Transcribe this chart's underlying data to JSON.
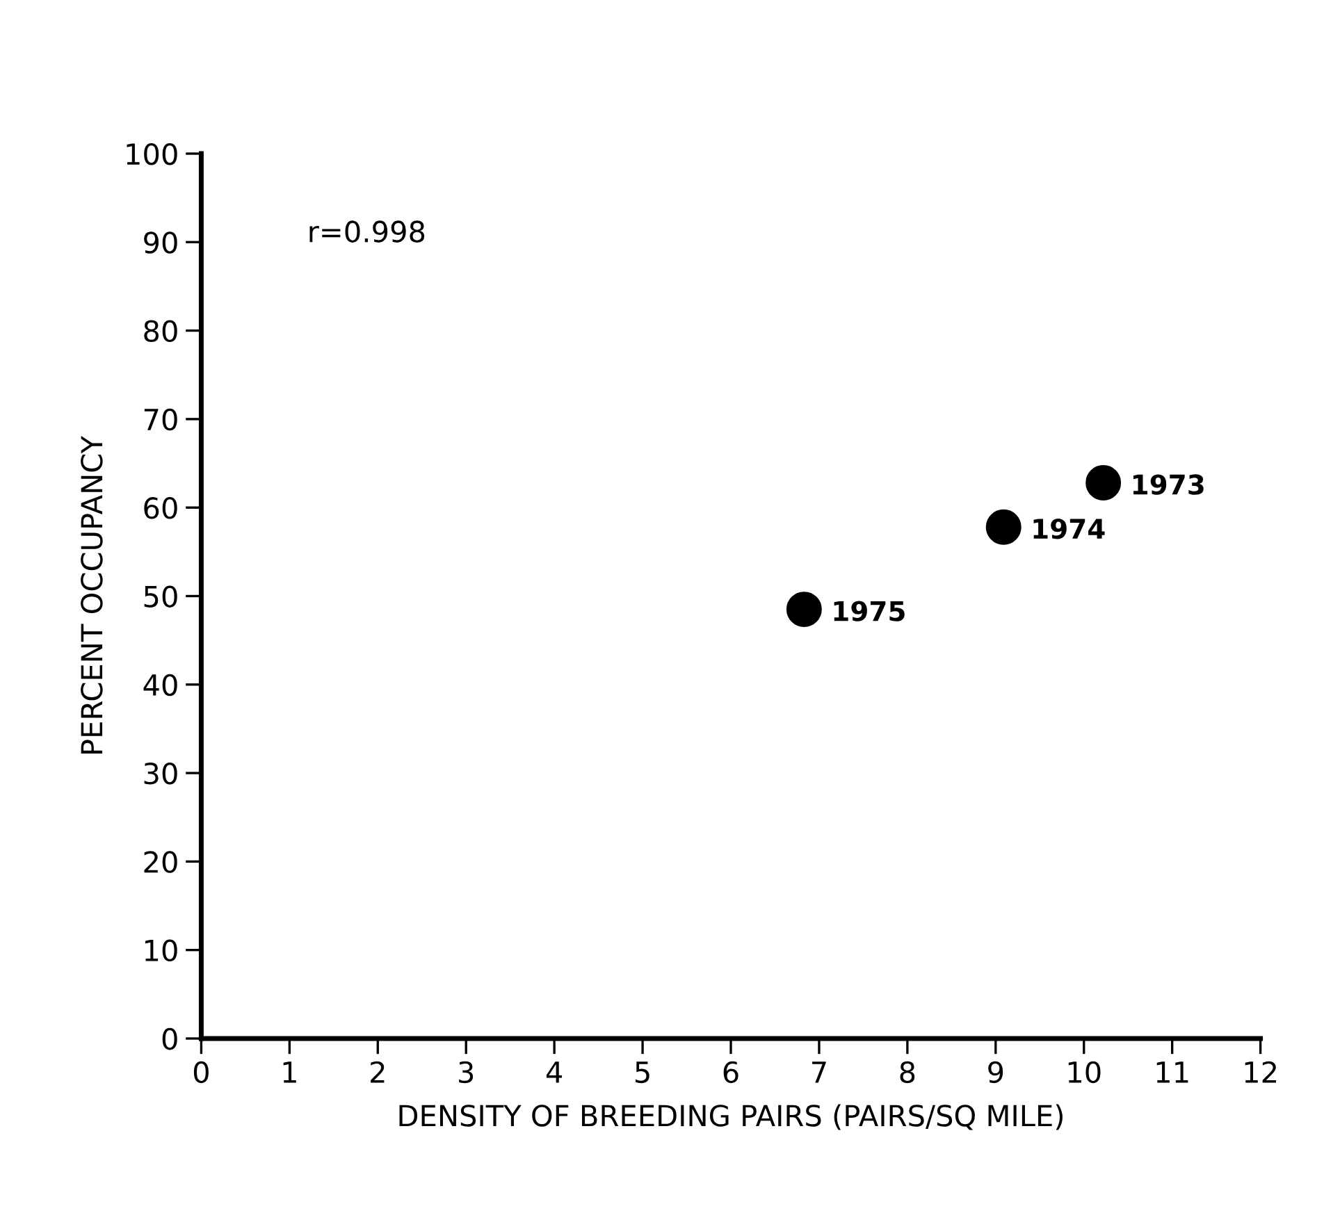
{
  "chart_data": {
    "type": "scatter",
    "xlabel": "DENSITY OF BREEDING PAIRS (PAIRS/SQ MILE)",
    "ylabel": "PERCENT OCCUPANCY",
    "x": [
      10.22,
      9.09,
      6.83
    ],
    "series": [
      {
        "color": "#000000",
        "values": [
          62.8,
          57.8,
          48.5
        ]
      }
    ],
    "marker": "circle",
    "grid": false,
    "xlim": [
      0,
      12
    ],
    "ylim": [
      0,
      100
    ],
    "xticks": [
      0,
      1,
      2,
      3,
      4,
      5,
      6,
      7,
      8,
      9,
      10,
      11,
      12
    ],
    "yticks": [
      0,
      10,
      20,
      30,
      40,
      50,
      60,
      70,
      80,
      90,
      100
    ],
    "annotations": [
      "r=0.998",
      {
        "text": "1973",
        "x": 10.22,
        "y": 62.8
      },
      {
        "text": "1974",
        "x": 9.09,
        "y": 57.8
      },
      {
        "text": "1975",
        "x": 6.83,
        "y": 48.5
      }
    ]
  }
}
